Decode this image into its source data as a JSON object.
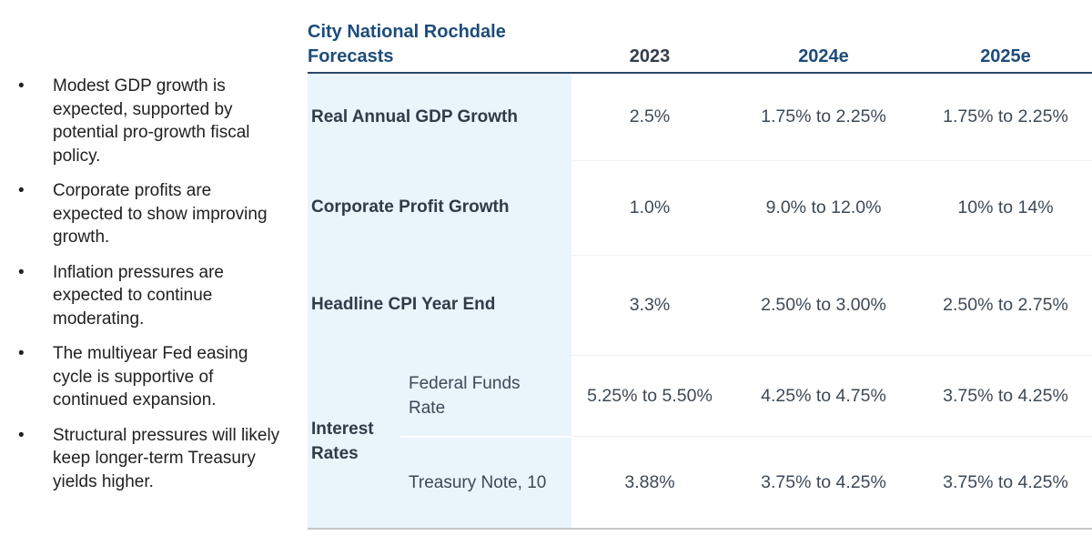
{
  "commentary": {
    "bullets": [
      "Modest GDP growth is expected, supported by potential pro-growth fiscal policy.",
      "Corporate profits are expected to show improving growth.",
      "Inflation pressures are expected to continue moderating.",
      "The multiyear Fed easing cycle is supportive of continued expansion.",
      "Structural pressures will likely keep longer-term Treasury yields higher."
    ],
    "bullet_char": "•"
  },
  "table": {
    "title": "City National Rochdale Forecasts",
    "columns": [
      {
        "label": "2023"
      },
      {
        "label": "2024e"
      },
      {
        "label": "2025e"
      }
    ],
    "rows": [
      {
        "label": "Real Annual GDP Growth",
        "values": [
          "2.5%",
          "1.75% to 2.25%",
          "1.75% to 2.25%"
        ]
      },
      {
        "label": "Corporate Profit Growth",
        "values": [
          "1.0%",
          "9.0% to 12.0%",
          "10% to 14%"
        ]
      },
      {
        "label": "Headline CPI Year End",
        "values": [
          "3.3%",
          "2.50% to 3.00%",
          "2.50% to 2.75%"
        ]
      },
      {
        "group_label": "Interest Rates",
        "label": "Federal Funds Rate",
        "values": [
          "5.25% to 5.50%",
          "4.25% to 4.75%",
          "3.75% to 4.25%"
        ]
      },
      {
        "label": "Treasury Note, 10",
        "values": [
          "3.88%",
          "3.75% to 4.25%",
          "3.75% to 4.25%"
        ]
      }
    ]
  },
  "colors": {
    "accent_navy": "#1d4c7a",
    "heading_actual_year": "#333e4a",
    "body_text": "#3d4956",
    "bullet_text": "#212121",
    "label_column_bg": "#e9f4fb",
    "header_rule": "#2b4867",
    "bottom_rule": "#c7c7c7",
    "row_separator": "#edf0f3"
  }
}
